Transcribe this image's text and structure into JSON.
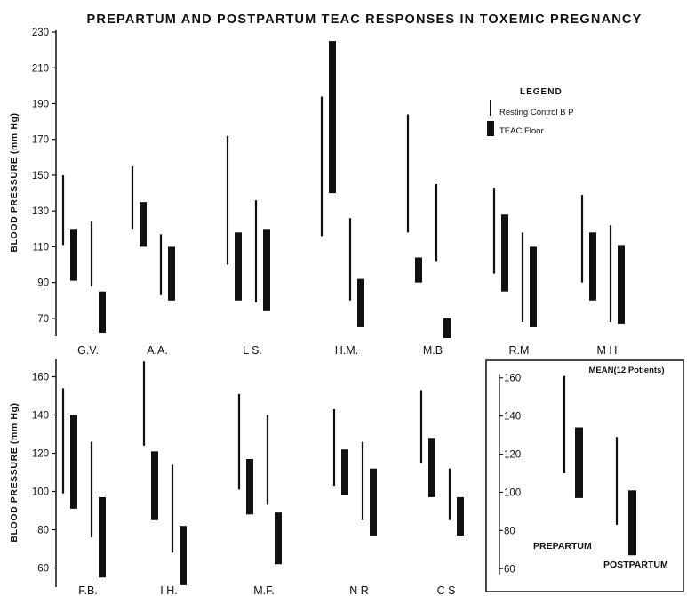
{
  "title": "PREPARTUM AND POSTPARTUM TEAC RESPONSES IN TOXEMIC PREGNANCY",
  "legend": {
    "title": "LEGEND",
    "resting_label": "Resting Control B P",
    "teac_label": "TEAC Floor"
  },
  "colors": {
    "ink": "#111111",
    "background": "#ffffff"
  },
  "chart_data": [
    {
      "type": "range-bar",
      "panel": "top",
      "ylabel": "BLOOD PRESSURE (mm Hg)",
      "ylim": [
        60,
        232
      ],
      "yticks": [
        70,
        90,
        110,
        130,
        150,
        170,
        190,
        210,
        230
      ],
      "categories": [
        "G.V.",
        "A.A.",
        "L S.",
        "H.M.",
        "M.B",
        "R.M",
        "M H"
      ],
      "prepartum": {
        "resting": [
          [
            111,
            150
          ],
          [
            120,
            155
          ],
          [
            100,
            172
          ],
          [
            116,
            194
          ],
          [
            118,
            184
          ],
          [
            95,
            143
          ],
          [
            90,
            139
          ]
        ],
        "teac": [
          [
            91,
            120
          ],
          [
            110,
            135
          ],
          [
            80,
            118
          ],
          [
            140,
            225
          ],
          [
            90,
            104
          ],
          [
            85,
            128
          ],
          [
            80,
            118
          ]
        ]
      },
      "postpartum": {
        "resting": [
          [
            88,
            124
          ],
          [
            83,
            117
          ],
          [
            79,
            136
          ],
          [
            80,
            126
          ],
          [
            102,
            145
          ],
          [
            68,
            118
          ],
          [
            68,
            122
          ]
        ],
        "teac": [
          [
            62,
            85
          ],
          [
            80,
            110
          ],
          [
            74,
            120
          ],
          [
            65,
            92
          ],
          [
            59,
            70
          ],
          [
            65,
            110
          ],
          [
            67,
            111
          ]
        ]
      }
    },
    {
      "type": "range-bar",
      "panel": "bottom",
      "ylabel": "BLOOD PRESSURE (mm Hg)",
      "ylim": [
        50,
        170
      ],
      "yticks": [
        60,
        80,
        100,
        120,
        140,
        160
      ],
      "categories": [
        "F.B.",
        "I H.",
        "M.F.",
        "N R",
        "C S"
      ],
      "prepartum": {
        "resting": [
          [
            99,
            154
          ],
          [
            124,
            168
          ],
          [
            101,
            151
          ],
          [
            103,
            143
          ],
          [
            115,
            153
          ]
        ],
        "teac": [
          [
            91,
            140
          ],
          [
            85,
            121
          ],
          [
            88,
            117
          ],
          [
            98,
            122
          ],
          [
            97,
            128
          ]
        ]
      },
      "postpartum": {
        "resting": [
          [
            76,
            126
          ],
          [
            68,
            114
          ],
          [
            93,
            140
          ],
          [
            85,
            126
          ],
          [
            85,
            112
          ]
        ],
        "teac": [
          [
            55,
            97
          ],
          [
            51,
            82
          ],
          [
            62,
            89
          ],
          [
            77,
            112
          ],
          [
            77,
            97
          ]
        ]
      }
    },
    {
      "type": "range-bar",
      "panel": "inset",
      "title": "MEAN(12 Potients)",
      "ylim": [
        55,
        165
      ],
      "yticks": [
        60,
        80,
        100,
        120,
        140,
        160
      ],
      "labels": [
        "PREPARTUM",
        "POSTPARTUM"
      ],
      "prepartum": {
        "resting": [
          110,
          161
        ],
        "teac": [
          97,
          134
        ]
      },
      "postpartum": {
        "resting": [
          83,
          129
        ],
        "teac": [
          67,
          101
        ]
      }
    }
  ]
}
